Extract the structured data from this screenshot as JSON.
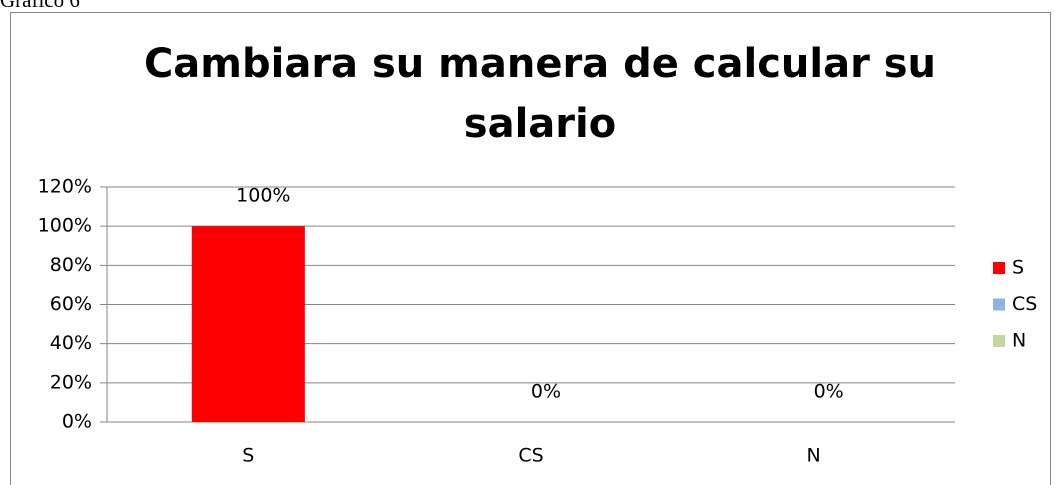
{
  "caption": "Gráfico 6",
  "chart_data": {
    "type": "bar",
    "title": "Cambiara su manera de calcular su salario",
    "categories": [
      "S",
      "CS",
      "N"
    ],
    "values": [
      100,
      0,
      0
    ],
    "value_labels": [
      "100%",
      "0%",
      "0%"
    ],
    "colors": [
      "#ff0000",
      "#8eb4e3",
      "#c3d69b"
    ],
    "ylim": [
      0,
      120
    ],
    "yticks": [
      {
        "value": 0,
        "label": "0%"
      },
      {
        "value": 20,
        "label": "20%"
      },
      {
        "value": 40,
        "label": "40%"
      },
      {
        "value": 60,
        "label": "60%"
      },
      {
        "value": 80,
        "label": "80%"
      },
      {
        "value": 100,
        "label": "100%"
      },
      {
        "value": 120,
        "label": "120%"
      }
    ],
    "grid": true,
    "legend": "right"
  }
}
